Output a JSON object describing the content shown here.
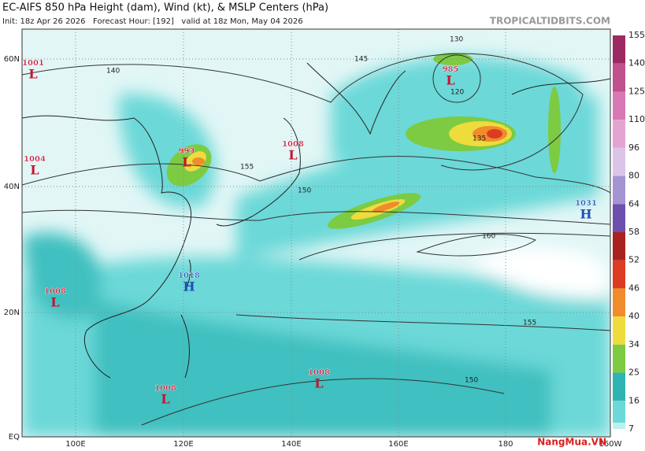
{
  "header": {
    "title": "EC-AIFS 850 hPa Height (dam), Wind (kt), & MSLP Centers (hPa)",
    "subtitle": "Init: 18z Apr 26 2026   Forecast Hour: [192]   valid at 18z Mon, May 04 2026",
    "site": "TROPICALTIDBITS.COM"
  },
  "axes": {
    "lat_labels": [
      "60N",
      "40N",
      "20N",
      "EQ"
    ],
    "lon_labels": [
      "100E",
      "120E",
      "140E",
      "160E",
      "180",
      "160W"
    ]
  },
  "colorbar": {
    "labels": [
      "155",
      "140",
      "125",
      "110",
      "96",
      "80",
      "64",
      "58",
      "52",
      "46",
      "40",
      "34",
      "25",
      "16",
      "7"
    ],
    "colors": [
      "#9c2a62",
      "#c0508e",
      "#d878b4",
      "#e4a4d2",
      "#dcc4e8",
      "#a494d4",
      "#6e4fae",
      "#a8231f",
      "#dc3c22",
      "#f08c2c",
      "#eedc3c",
      "#7ccb42",
      "#2fb4b4",
      "#6cd8d8",
      "#bdf0f0"
    ]
  },
  "centers": [
    {
      "pressure": "1001",
      "symbol": "L"
    },
    {
      "pressure": "1004",
      "symbol": "L"
    },
    {
      "pressure": "993",
      "symbol": "L"
    },
    {
      "pressure": "1008",
      "symbol": "L"
    },
    {
      "pressure": "985",
      "symbol": "L"
    },
    {
      "pressure": "1031",
      "symbol": "H"
    },
    {
      "pressure": "1018",
      "symbol": "H"
    },
    {
      "pressure": "1008",
      "symbol": "L"
    },
    {
      "pressure": "1008",
      "symbol": "L"
    },
    {
      "pressure": "1008",
      "symbol": "L"
    }
  ],
  "contour_labels": [
    "140",
    "145",
    "150",
    "155",
    "160",
    "135",
    "130",
    "120",
    "150",
    "155"
  ],
  "watermark": "NangMua.VN"
}
